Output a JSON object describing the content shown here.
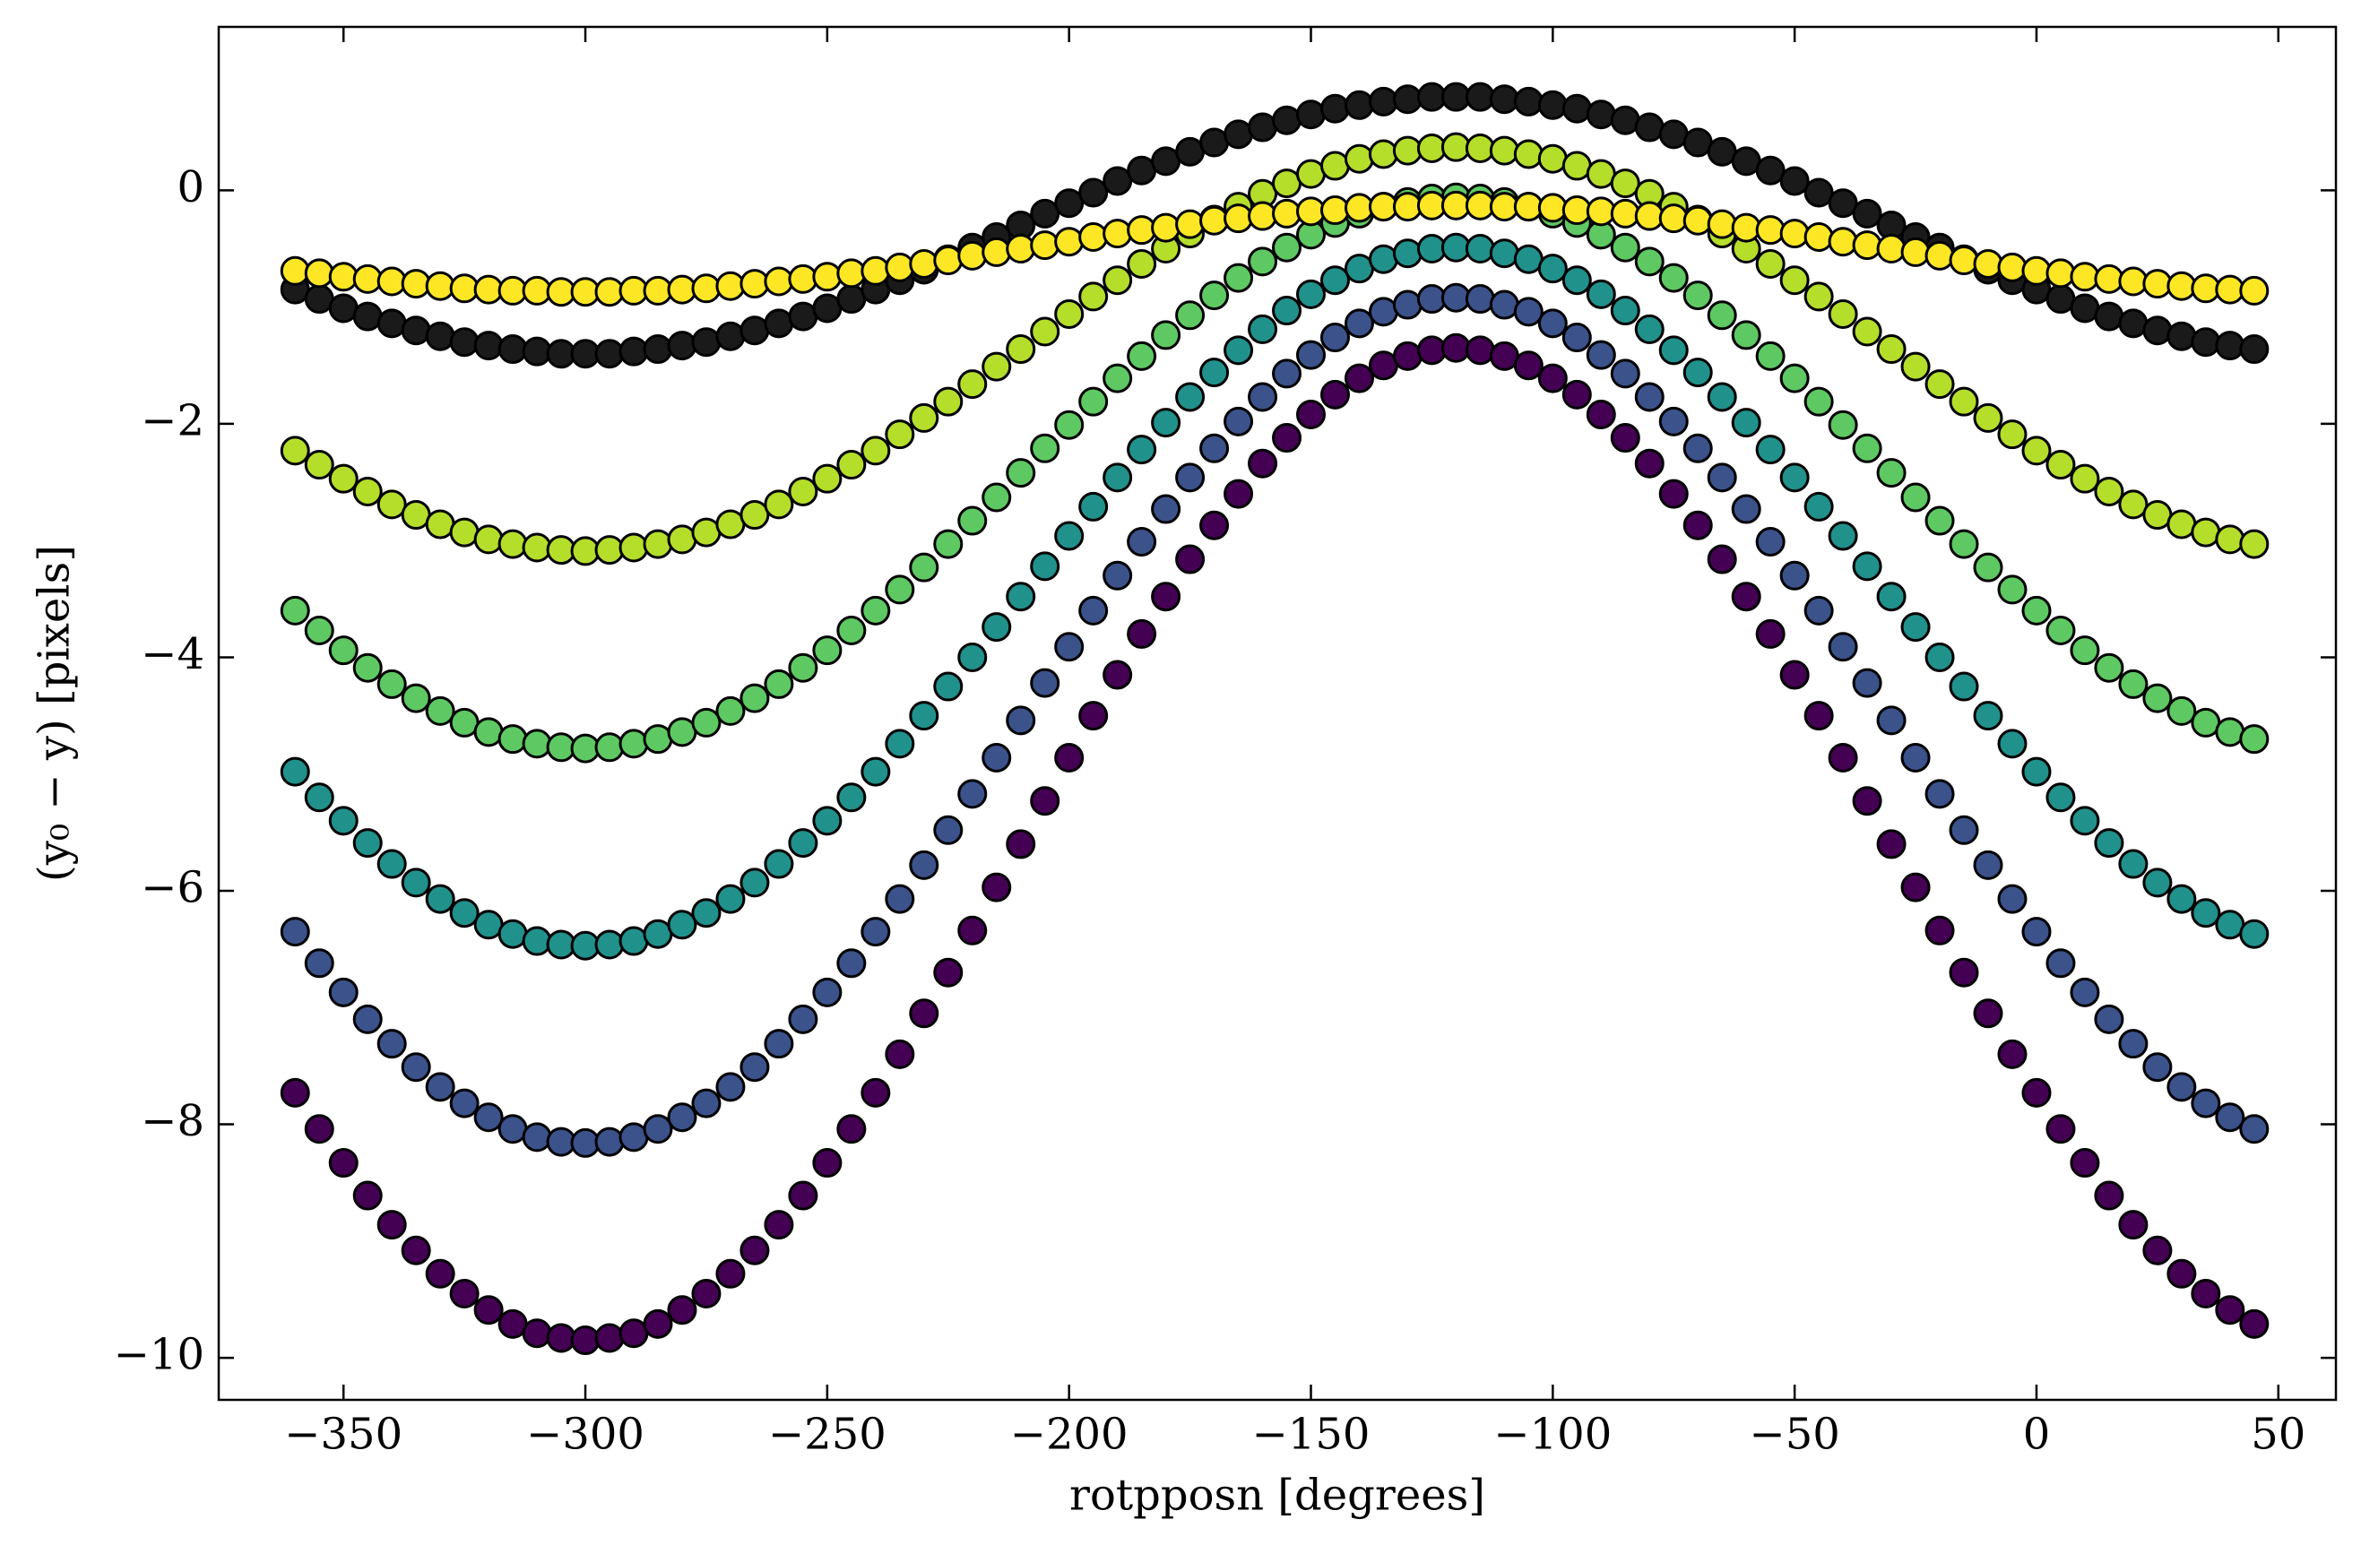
{
  "chart_data": {
    "type": "scatter",
    "x_label": "rotpposn [degrees]",
    "y_label": "(y₀ −  y) [pixels]",
    "x": [
      -360,
      -355,
      -350,
      -345,
      -340,
      -335,
      -330,
      -325,
      -320,
      -315,
      -310,
      -305,
      -300,
      -295,
      -290,
      -285,
      -280,
      -275,
      -270,
      -265,
      -260,
      -255,
      -250,
      -245,
      -240,
      -235,
      -230,
      -225,
      -220,
      -215,
      -210,
      -205,
      -200,
      -195,
      -190,
      -185,
      -180,
      -175,
      -170,
      -165,
      -160,
      -155,
      -150,
      -145,
      -140,
      -135,
      -130,
      -125,
      -120,
      -115,
      -110,
      -105,
      -100,
      -95,
      -90,
      -85,
      -80,
      -75,
      -70,
      -65,
      -60,
      -55,
      -50,
      -45,
      -40,
      -35,
      -30,
      -25,
      -20,
      -15,
      -10,
      -5,
      0,
      5,
      10,
      15,
      20,
      25,
      30,
      35,
      40,
      45
    ],
    "series": [
      {
        "color": "#440154",
        "values": [
          -7.73,
          -8.04,
          -8.33,
          -8.61,
          -8.86,
          -9.08,
          -9.28,
          -9.45,
          -9.59,
          -9.71,
          -9.79,
          -9.83,
          -9.85,
          -9.83,
          -9.79,
          -9.71,
          -9.59,
          -9.45,
          -9.28,
          -9.08,
          -8.86,
          -8.61,
          -8.33,
          -8.04,
          -7.73,
          -7.4,
          -7.05,
          -6.7,
          -6.34,
          -5.97,
          -5.6,
          -5.23,
          -4.86,
          -4.5,
          -4.15,
          -3.8,
          -3.48,
          -3.16,
          -2.87,
          -2.6,
          -2.34,
          -2.12,
          -1.92,
          -1.75,
          -1.61,
          -1.5,
          -1.42,
          -1.37,
          -1.35,
          -1.37,
          -1.42,
          -1.5,
          -1.61,
          -1.75,
          -1.92,
          -2.12,
          -2.34,
          -2.6,
          -2.87,
          -3.16,
          -3.48,
          -3.8,
          -4.15,
          -4.5,
          -4.86,
          -5.23,
          -5.6,
          -5.97,
          -6.34,
          -6.7,
          -7.05,
          -7.4,
          -7.73,
          -8.04,
          -8.33,
          -8.61,
          -8.86,
          -9.08,
          -9.28,
          -9.45,
          -9.59,
          -9.71
        ]
      },
      {
        "color": "#3b528b",
        "values": [
          -6.35,
          -6.62,
          -6.87,
          -7.1,
          -7.31,
          -7.51,
          -7.68,
          -7.82,
          -7.94,
          -8.04,
          -8.11,
          -8.15,
          -8.16,
          -8.15,
          -8.11,
          -8.04,
          -7.94,
          -7.82,
          -7.68,
          -7.51,
          -7.31,
          -7.1,
          -6.87,
          -6.62,
          -6.35,
          -6.07,
          -5.78,
          -5.48,
          -5.17,
          -4.86,
          -4.54,
          -4.22,
          -3.91,
          -3.6,
          -3.3,
          -3.01,
          -2.73,
          -2.46,
          -2.21,
          -1.98,
          -1.77,
          -1.57,
          -1.41,
          -1.26,
          -1.14,
          -1.04,
          -0.98,
          -0.93,
          -0.92,
          -0.93,
          -0.98,
          -1.04,
          -1.14,
          -1.26,
          -1.41,
          -1.57,
          -1.77,
          -1.98,
          -2.21,
          -2.46,
          -2.73,
          -3.01,
          -3.3,
          -3.6,
          -3.91,
          -4.22,
          -4.54,
          -4.86,
          -5.17,
          -5.48,
          -5.78,
          -6.07,
          -6.35,
          -6.62,
          -6.87,
          -7.1,
          -7.31,
          -7.51,
          -7.68,
          -7.82,
          -7.94,
          -8.04
        ]
      },
      {
        "color": "#21918c",
        "values": [
          -4.98,
          -5.2,
          -5.4,
          -5.59,
          -5.77,
          -5.93,
          -6.07,
          -6.19,
          -6.29,
          -6.37,
          -6.43,
          -6.46,
          -6.47,
          -6.46,
          -6.43,
          -6.37,
          -6.29,
          -6.19,
          -6.07,
          -5.93,
          -5.77,
          -5.59,
          -5.4,
          -5.2,
          -4.98,
          -4.74,
          -4.5,
          -4.25,
          -4.0,
          -3.74,
          -3.48,
          -3.22,
          -2.96,
          -2.71,
          -2.46,
          -2.22,
          -1.99,
          -1.77,
          -1.56,
          -1.37,
          -1.19,
          -1.03,
          -0.89,
          -0.77,
          -0.67,
          -0.59,
          -0.54,
          -0.5,
          -0.49,
          -0.5,
          -0.54,
          -0.59,
          -0.67,
          -0.77,
          -0.89,
          -1.03,
          -1.19,
          -1.37,
          -1.56,
          -1.77,
          -1.99,
          -2.22,
          -2.46,
          -2.71,
          -2.96,
          -3.22,
          -3.48,
          -3.74,
          -4.0,
          -4.25,
          -4.5,
          -4.74,
          -4.98,
          -5.2,
          -5.4,
          -5.59,
          -5.77,
          -5.93,
          -6.07,
          -6.19,
          -6.29,
          -6.37
        ]
      },
      {
        "color": "#5ec962",
        "values": [
          -3.6,
          -3.77,
          -3.94,
          -4.09,
          -4.23,
          -4.35,
          -4.46,
          -4.56,
          -4.64,
          -4.7,
          -4.74,
          -4.77,
          -4.78,
          -4.77,
          -4.74,
          -4.7,
          -4.64,
          -4.56,
          -4.46,
          -4.35,
          -4.23,
          -4.09,
          -3.94,
          -3.77,
          -3.6,
          -3.42,
          -3.23,
          -3.03,
          -2.83,
          -2.63,
          -2.42,
          -2.21,
          -2.01,
          -1.81,
          -1.61,
          -1.42,
          -1.24,
          -1.07,
          -0.9,
          -0.75,
          -0.61,
          -0.49,
          -0.38,
          -0.28,
          -0.2,
          -0.14,
          -0.1,
          -0.07,
          -0.06,
          -0.07,
          -0.1,
          -0.14,
          -0.2,
          -0.28,
          -0.38,
          -0.49,
          -0.61,
          -0.75,
          -0.9,
          -1.07,
          -1.24,
          -1.42,
          -1.61,
          -1.81,
          -2.01,
          -2.21,
          -2.42,
          -2.63,
          -2.83,
          -3.03,
          -3.23,
          -3.42,
          -3.6,
          -3.77,
          -3.94,
          -4.09,
          -4.23,
          -4.35,
          -4.46,
          -4.56,
          -4.64,
          -4.7
        ]
      },
      {
        "color": "#b5de2b",
        "values": [
          -2.23,
          -2.35,
          -2.47,
          -2.58,
          -2.69,
          -2.78,
          -2.86,
          -2.93,
          -2.99,
          -3.03,
          -3.06,
          -3.08,
          -3.09,
          -3.08,
          -3.06,
          -3.03,
          -2.99,
          -2.93,
          -2.86,
          -2.78,
          -2.69,
          -2.58,
          -2.47,
          -2.35,
          -2.23,
          -2.09,
          -1.95,
          -1.81,
          -1.66,
          -1.51,
          -1.36,
          -1.21,
          -1.06,
          -0.91,
          -0.77,
          -0.63,
          -0.5,
          -0.37,
          -0.25,
          -0.14,
          -0.03,
          0.06,
          0.14,
          0.21,
          0.27,
          0.31,
          0.34,
          0.36,
          0.37,
          0.36,
          0.34,
          0.31,
          0.27,
          0.21,
          0.14,
          0.06,
          -0.03,
          -0.14,
          -0.25,
          -0.37,
          -0.5,
          -0.63,
          -0.77,
          -0.91,
          -1.06,
          -1.21,
          -1.36,
          -1.51,
          -1.66,
          -1.81,
          -1.95,
          -2.09,
          -2.23,
          -2.35,
          -2.47,
          -2.58,
          -2.69,
          -2.78,
          -2.86,
          -2.93,
          -2.99,
          -3.03
        ]
      },
      {
        "color": "#1a1a1a",
        "values": [
          -0.85,
          -0.93,
          -1.01,
          -1.08,
          -1.14,
          -1.2,
          -1.25,
          -1.3,
          -1.33,
          -1.36,
          -1.38,
          -1.4,
          -1.4,
          -1.4,
          -1.38,
          -1.36,
          -1.33,
          -1.3,
          -1.25,
          -1.2,
          -1.14,
          -1.08,
          -1.01,
          -0.93,
          -0.85,
          -0.77,
          -0.68,
          -0.59,
          -0.49,
          -0.4,
          -0.3,
          -0.2,
          -0.11,
          -0.02,
          0.08,
          0.17,
          0.25,
          0.33,
          0.41,
          0.48,
          0.54,
          0.6,
          0.65,
          0.7,
          0.73,
          0.76,
          0.78,
          0.8,
          0.8,
          0.8,
          0.78,
          0.76,
          0.73,
          0.7,
          0.65,
          0.6,
          0.54,
          0.48,
          0.41,
          0.33,
          0.25,
          0.17,
          0.08,
          -0.02,
          -0.11,
          -0.2,
          -0.3,
          -0.4,
          -0.49,
          -0.59,
          -0.68,
          -0.77,
          -0.85,
          -0.93,
          -1.01,
          -1.08,
          -1.14,
          -1.2,
          -1.25,
          -1.3,
          -1.33,
          -1.36
        ]
      },
      {
        "color": "#fde725",
        "values": [
          -0.69,
          -0.71,
          -0.74,
          -0.76,
          -0.78,
          -0.8,
          -0.82,
          -0.84,
          -0.85,
          -0.86,
          -0.86,
          -0.87,
          -0.87,
          -0.87,
          -0.86,
          -0.86,
          -0.85,
          -0.84,
          -0.82,
          -0.8,
          -0.78,
          -0.76,
          -0.74,
          -0.71,
          -0.69,
          -0.66,
          -0.63,
          -0.6,
          -0.56,
          -0.53,
          -0.5,
          -0.47,
          -0.44,
          -0.4,
          -0.37,
          -0.34,
          -0.32,
          -0.29,
          -0.26,
          -0.24,
          -0.22,
          -0.2,
          -0.18,
          -0.17,
          -0.15,
          -0.14,
          -0.14,
          -0.13,
          -0.13,
          -0.13,
          -0.14,
          -0.14,
          -0.15,
          -0.17,
          -0.18,
          -0.2,
          -0.22,
          -0.24,
          -0.26,
          -0.29,
          -0.32,
          -0.34,
          -0.37,
          -0.4,
          -0.44,
          -0.47,
          -0.5,
          -0.53,
          -0.56,
          -0.6,
          -0.63,
          -0.66,
          -0.69,
          -0.71,
          -0.74,
          -0.76,
          -0.78,
          -0.8,
          -0.82,
          -0.84,
          -0.85,
          -0.86
        ]
      }
    ],
    "marker_edge_color": "#000000",
    "grid": false,
    "xlim": [
      -375.8,
      61.9
    ],
    "ylim": [
      -10.36,
      1.4
    ],
    "xticks": [
      {
        "value": -350,
        "label": "−350"
      },
      {
        "value": -300,
        "label": "−300"
      },
      {
        "value": -250,
        "label": "−250"
      },
      {
        "value": -200,
        "label": "−200"
      },
      {
        "value": -150,
        "label": "−150"
      },
      {
        "value": -100,
        "label": "−100"
      },
      {
        "value": -50,
        "label": "−50"
      },
      0,
      50
    ],
    "yticks": [
      {
        "value": -10,
        "label": "−10"
      },
      {
        "value": -8,
        "label": "−8"
      },
      {
        "value": -6,
        "label": "−6"
      },
      {
        "value": -4,
        "label": "−4"
      },
      {
        "value": -2,
        "label": "−2"
      },
      0
    ]
  }
}
